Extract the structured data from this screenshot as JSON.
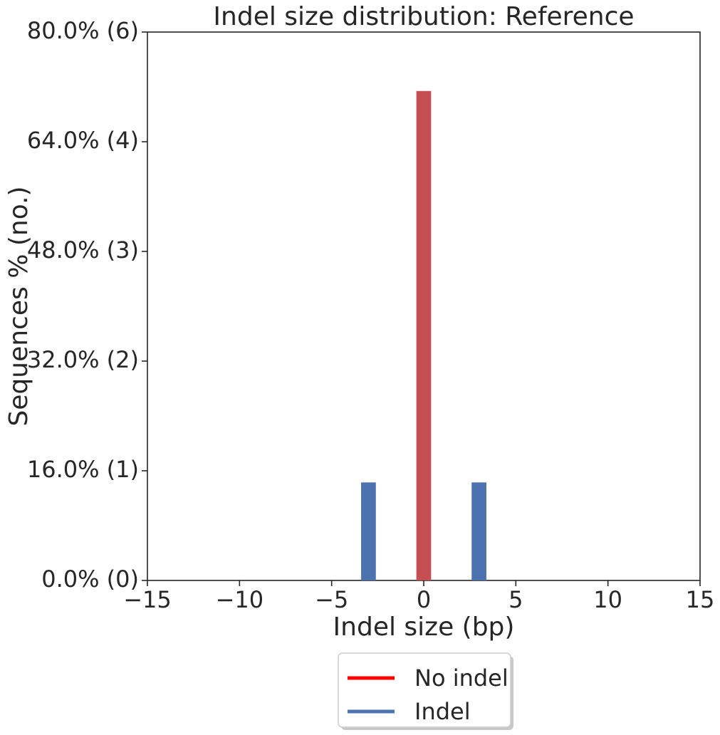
{
  "chart_data": {
    "type": "bar",
    "title": "Indel size distribution: Reference",
    "xlabel": "Indel size (bp)",
    "ylabel": "Sequences % (no.)",
    "xlim": [
      -15,
      15
    ],
    "ylim_percent": [
      0,
      80
    ],
    "x_ticks": [
      -15,
      -10,
      -5,
      0,
      5,
      10,
      15
    ],
    "x_tick_labels": [
      "−15",
      "−10",
      "−5",
      "0",
      "5",
      "10",
      "15"
    ],
    "y_ticks_percent": [
      0,
      16,
      32,
      48,
      64,
      80
    ],
    "y_tick_labels": [
      "0.0% (0)",
      "16.0% (1)",
      "32.0% (2)",
      "48.0% (3)",
      "64.0% (4)",
      "80.0% (6)"
    ],
    "bar_width": 0.8,
    "grid": false,
    "legend_position": "bottom-center",
    "series": [
      {
        "name": "No indel",
        "color": "#C44E52",
        "legend_color": "#FF0000",
        "x": [
          0
        ],
        "values_percent": [
          71.4
        ]
      },
      {
        "name": "Indel",
        "color": "#4C72B0",
        "legend_color": "#4C72B0",
        "x": [
          -3,
          3
        ],
        "values_percent": [
          14.3,
          14.3
        ]
      }
    ]
  }
}
